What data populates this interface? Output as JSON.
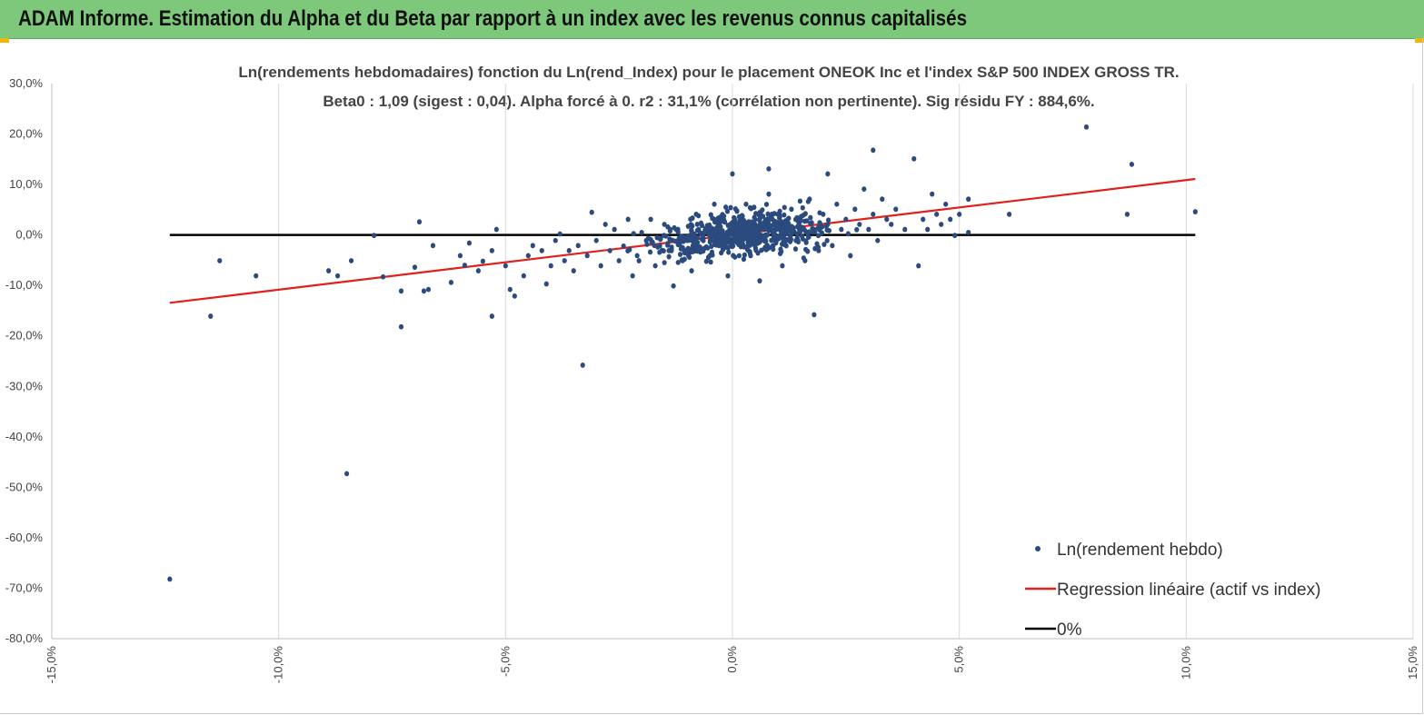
{
  "header": {
    "title": "ADAM Informe. Estimation du Alpha et du Beta par rapport à un index avec les revenus connus capitalisés"
  },
  "colors": {
    "header_bg": "#7dc87a",
    "points": "#2b4a7e",
    "regression": "#e0201b",
    "zero_line": "#000000",
    "grid": "#d9d9d9"
  },
  "chart_data": {
    "type": "scatter",
    "title_lines": [
      "Ln(rendements hebdomadaires) fonction du Ln(rend_Index) pour le placement ONEOK Inc et l'index S&P 500 INDEX GROSS TR.",
      "Beta0 : 1,09 (sigest : 0,04). Alpha forcé à 0. r2 : 31,1% (corrélation non pertinente). Sig résidu FY : 884,6%."
    ],
    "xlim": [
      -0.15,
      0.15
    ],
    "ylim": [
      -0.8,
      0.3
    ],
    "x_ticks": [
      "-15,0%",
      "-10,0%",
      "-5,0%",
      "0,0%",
      "5,0%",
      "10,0%",
      "15,0%"
    ],
    "y_ticks": [
      "30,0%",
      "20,0%",
      "10,0%",
      "0,0%",
      "-10,0%",
      "-20,0%",
      "-30,0%",
      "-40,0%",
      "-50,0%",
      "-60,0%",
      "-70,0%",
      "-80,0%"
    ],
    "grid": "vertical",
    "legend_position": "bottom-right",
    "series": [
      {
        "name": "Ln(rendement hebdo)",
        "kind": "scatter",
        "color": "#2b4a7e",
        "points": [
          [
            -0.124,
            -0.682
          ],
          [
            -0.115,
            -0.161
          ],
          [
            -0.113,
            -0.051
          ],
          [
            -0.105,
            -0.081
          ],
          [
            -0.089,
            -0.071
          ],
          [
            -0.087,
            -0.081
          ],
          [
            -0.085,
            -0.473
          ],
          [
            -0.084,
            -0.051
          ],
          [
            -0.079,
            -0.001
          ],
          [
            -0.077,
            -0.083
          ],
          [
            -0.073,
            -0.111
          ],
          [
            -0.073,
            -0.182
          ],
          [
            -0.07,
            -0.064
          ],
          [
            -0.069,
            0.026
          ],
          [
            -0.068,
            -0.111
          ],
          [
            -0.067,
            -0.108
          ],
          [
            -0.066,
            -0.021
          ],
          [
            -0.062,
            -0.094
          ],
          [
            -0.06,
            -0.041
          ],
          [
            -0.059,
            -0.06
          ],
          [
            -0.058,
            -0.016
          ],
          [
            -0.056,
            -0.071
          ],
          [
            -0.055,
            -0.052
          ],
          [
            -0.053,
            -0.161
          ],
          [
            -0.053,
            -0.031
          ],
          [
            -0.052,
            0.011
          ],
          [
            -0.05,
            -0.061
          ],
          [
            -0.049,
            -0.108
          ],
          [
            -0.048,
            -0.121
          ],
          [
            -0.046,
            -0.081
          ],
          [
            -0.045,
            -0.041
          ],
          [
            -0.044,
            -0.021
          ],
          [
            -0.042,
            -0.031
          ],
          [
            -0.041,
            -0.097
          ],
          [
            -0.04,
            -0.061
          ],
          [
            -0.039,
            -0.011
          ],
          [
            -0.038,
            0.002
          ],
          [
            -0.037,
            -0.051
          ],
          [
            -0.036,
            -0.031
          ],
          [
            -0.035,
            -0.071
          ],
          [
            -0.034,
            -0.021
          ],
          [
            -0.033,
            -0.258
          ],
          [
            -0.032,
            -0.041
          ],
          [
            -0.031,
            0.045
          ],
          [
            -0.03,
            -0.011
          ],
          [
            -0.029,
            -0.061
          ],
          [
            -0.028,
            0.021
          ],
          [
            -0.027,
            -0.031
          ],
          [
            -0.026,
            0.011
          ],
          [
            -0.025,
            -0.051
          ],
          [
            -0.024,
            -0.022
          ],
          [
            -0.023,
            0.031
          ],
          [
            -0.022,
            -0.081
          ],
          [
            -0.021,
            -0.041
          ],
          [
            -0.02,
            0.005
          ],
          [
            -0.019,
            -0.011
          ],
          [
            -0.018,
            0.031
          ],
          [
            -0.017,
            -0.061
          ],
          [
            -0.016,
            -0.021
          ],
          [
            -0.015,
            0.021
          ],
          [
            -0.014,
            -0.031
          ],
          [
            -0.013,
            -0.101
          ],
          [
            -0.012,
            0.011
          ],
          [
            -0.011,
            -0.051
          ],
          [
            -0.01,
            -0.011
          ],
          [
            -0.009,
            -0.071
          ],
          [
            -0.008,
            0.041
          ],
          [
            -0.007,
            -0.031
          ],
          [
            -0.006,
            0.011
          ],
          [
            -0.005,
            -0.041
          ],
          [
            -0.004,
            0.061
          ],
          [
            -0.003,
            -0.021
          ],
          [
            -0.002,
            0.031
          ],
          [
            -0.001,
            -0.081
          ],
          [
            0.0,
            0.121
          ],
          [
            0.001,
            0.021
          ],
          [
            0.002,
            -0.011
          ],
          [
            0.003,
            0.061
          ],
          [
            0.004,
            -0.041
          ],
          [
            0.005,
            0.031
          ],
          [
            0.006,
            -0.091
          ],
          [
            0.007,
            0.011
          ],
          [
            0.008,
            0.081
          ],
          [
            0.009,
            -0.021
          ],
          [
            0.01,
            0.041
          ],
          [
            0.011,
            -0.061
          ],
          [
            0.012,
            0.021
          ],
          [
            0.013,
            0.051
          ],
          [
            0.014,
            -0.011
          ],
          [
            0.015,
            0.031
          ],
          [
            0.016,
            -0.051
          ],
          [
            0.017,
            0.071
          ],
          [
            0.018,
            0.011
          ],
          [
            0.019,
            -0.031
          ],
          [
            0.02,
            0.041
          ],
          [
            0.021,
            0.021
          ],
          [
            0.022,
            -0.021
          ],
          [
            0.023,
            0.061
          ],
          [
            0.024,
            0.011
          ],
          [
            0.025,
            0.031
          ],
          [
            0.026,
            -0.041
          ],
          [
            0.027,
            0.051
          ],
          [
            0.028,
            0.021
          ],
          [
            0.029,
            0.091
          ],
          [
            0.03,
            0.011
          ],
          [
            0.031,
            0.041
          ],
          [
            0.032,
            -0.011
          ],
          [
            0.033,
            0.071
          ],
          [
            0.034,
            0.031
          ],
          [
            0.035,
            0.021
          ],
          [
            0.036,
            0.051
          ],
          [
            0.038,
            0.011
          ],
          [
            0.04,
            0.151
          ],
          [
            0.041,
            -0.061
          ],
          [
            0.042,
            0.031
          ],
          [
            0.043,
            0.011
          ],
          [
            0.044,
            0.081
          ],
          [
            0.045,
            0.041
          ],
          [
            0.046,
            0.021
          ],
          [
            0.047,
            0.061
          ],
          [
            0.048,
            0.031
          ],
          [
            0.049,
            -0.001
          ],
          [
            0.05,
            0.041
          ],
          [
            0.052,
            0.071
          ],
          [
            0.031,
            0.168
          ],
          [
            0.018,
            -0.158
          ],
          [
            0.008,
            0.131
          ],
          [
            0.021,
            0.121
          ],
          [
            0.061,
            0.041
          ],
          [
            0.078,
            0.214
          ],
          [
            0.087,
            0.041
          ],
          [
            0.088,
            0.14
          ],
          [
            0.102,
            0.046
          ],
          [
            0.052,
            0.005
          ]
        ]
      },
      {
        "name": "Regression linéaire (actif vs index)",
        "kind": "line",
        "color": "#e0201b",
        "x": [
          -0.124,
          0.102
        ],
        "y": [
          -0.1345,
          0.111
        ]
      },
      {
        "name": "0%",
        "kind": "line",
        "color": "#000000",
        "x": [
          -0.124,
          0.102
        ],
        "y": [
          0.0,
          0.0
        ]
      }
    ]
  }
}
